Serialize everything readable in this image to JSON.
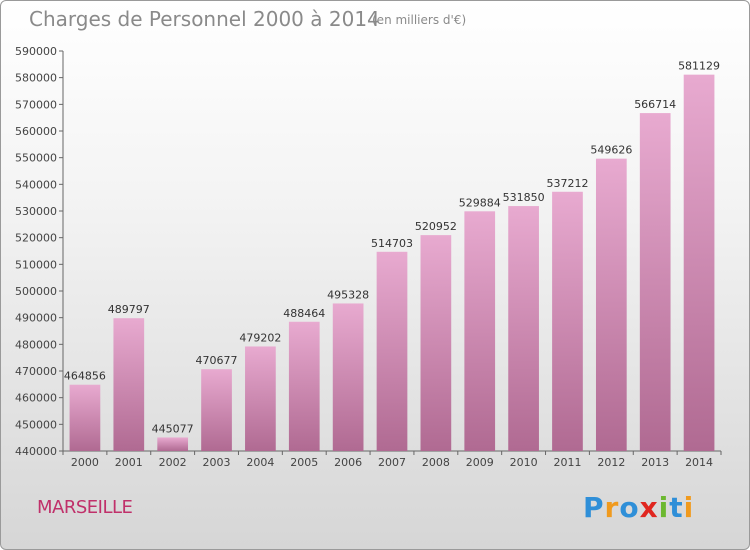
{
  "chart_data": {
    "type": "bar",
    "title": "Charges de Personnel 2000 à 2014",
    "subtitle": "(en milliers d'€)",
    "categories": [
      "2000",
      "2001",
      "2002",
      "2003",
      "2004",
      "2005",
      "2006",
      "2007",
      "2008",
      "2009",
      "2010",
      "2011",
      "2012",
      "2013",
      "2014"
    ],
    "values": [
      464856,
      489797,
      445077,
      470677,
      479202,
      488464,
      495328,
      514703,
      520952,
      529884,
      531850,
      537212,
      549626,
      566714,
      581129
    ],
    "ylim": [
      440000,
      590000
    ],
    "yticks": [
      440000,
      450000,
      460000,
      470000,
      480000,
      490000,
      500000,
      510000,
      520000,
      530000,
      540000,
      550000,
      560000,
      570000,
      580000,
      590000
    ],
    "grid": false,
    "legend": "none",
    "bar_color": "#d98bb6"
  },
  "footer": {
    "city": "MARSEILLE",
    "logo_letters": [
      "P",
      "r",
      "o",
      "x",
      "i",
      "t",
      "i"
    ]
  }
}
